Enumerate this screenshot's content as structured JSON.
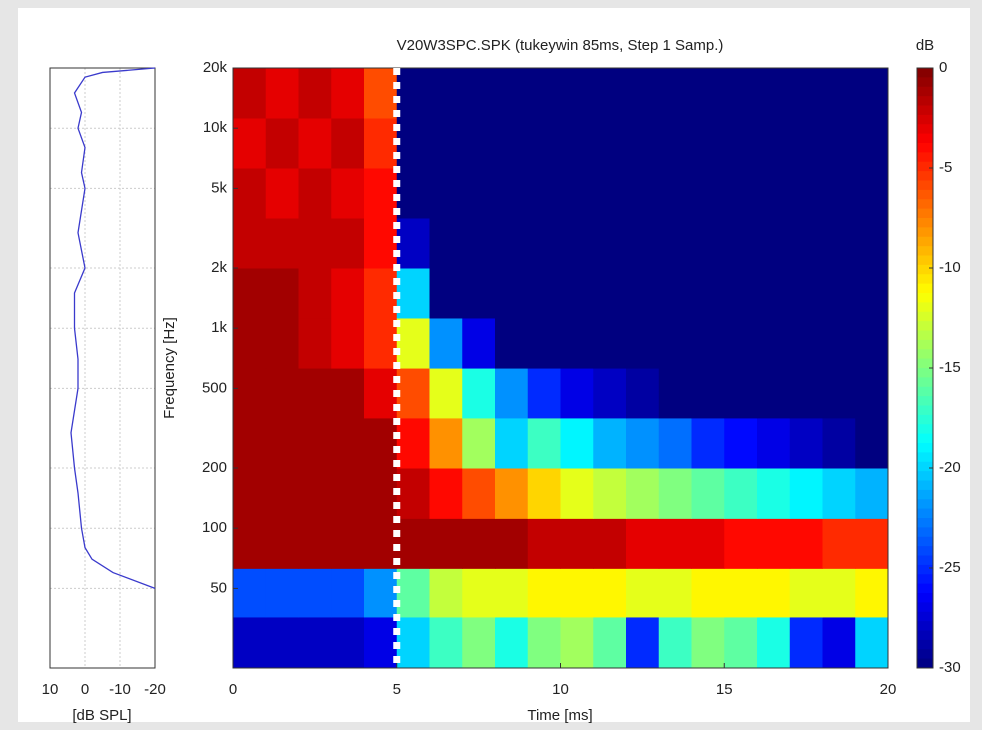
{
  "chart_data": [
    {
      "type": "line",
      "xlabel": "[dB SPL]",
      "y": [
        20000,
        19000,
        18000,
        15000,
        12000,
        10000,
        8000,
        6000,
        5000,
        3000,
        2000,
        1500,
        1000,
        700,
        500,
        300,
        200,
        150,
        100,
        80,
        70,
        60,
        50
      ],
      "values": [
        -20,
        -5,
        0,
        3,
        1,
        2,
        0,
        1,
        0,
        2,
        0,
        3,
        3,
        2,
        2,
        4,
        3,
        2,
        1,
        0,
        -2,
        -8,
        -20
      ],
      "color": "#3a3acc",
      "xlim": [
        10,
        -20
      ],
      "xticks": [
        10,
        0,
        -10,
        -20
      ],
      "ylim": [
        20,
        20000
      ],
      "log_y": true,
      "grid": true
    },
    {
      "type": "heatmap",
      "title": "V20W3SPC.SPK (tukeywin 85ms, Step 1 Samp.)",
      "xlabel": "Time [ms]",
      "ylabel": "Frequency [Hz]",
      "colorbar_label": "dB",
      "colormap": "jet",
      "clim": [
        -30,
        0
      ],
      "cticks": [
        0,
        -5,
        -10,
        -15,
        -20,
        -25,
        -30
      ],
      "xlim": [
        0,
        20
      ],
      "xticks": [
        0,
        5,
        10,
        15,
        20
      ],
      "ylim": [
        20,
        20000
      ],
      "log_y": true,
      "yticks": [
        50,
        100,
        200,
        500,
        {
          "value": 1000,
          "label": "1k"
        },
        {
          "value": 2000,
          "label": "2k"
        },
        {
          "value": 5000,
          "label": "5k"
        },
        {
          "value": 10000,
          "label": "10k"
        },
        {
          "value": 20000,
          "label": "20k"
        }
      ],
      "xedges": [
        0,
        1,
        2,
        3,
        4,
        5,
        6,
        7,
        8,
        9,
        10,
        11,
        12,
        13,
        14,
        15,
        16,
        17,
        18,
        19,
        20
      ],
      "yedges": [
        20,
        36,
        63,
        112,
        200,
        356,
        632,
        1125,
        2000,
        3557,
        6325,
        11247,
        20000
      ],
      "z": [
        [
          -28,
          -28,
          -28,
          -28,
          -27,
          -20,
          -17,
          -15,
          -18,
          -15,
          -14,
          -16,
          -25,
          -17,
          -15,
          -16,
          -18,
          -25,
          -27,
          -20
        ],
        [
          -24,
          -24,
          -24,
          -24,
          -22,
          -16,
          -13,
          -12,
          -12,
          -11,
          -11,
          -11,
          -12,
          -12,
          -11,
          -11,
          -11,
          -12,
          -12,
          -11
        ],
        [
          -1,
          -1,
          -1,
          -1,
          -1,
          -1,
          -1,
          -1,
          -1,
          -2,
          -2,
          -2,
          -3,
          -3,
          -3,
          -4,
          -4,
          -4,
          -5,
          -5
        ],
        [
          -1,
          -1,
          -1,
          -1,
          -1,
          -2,
          -4,
          -6,
          -8,
          -10,
          -12,
          -13,
          -14,
          -15,
          -16,
          -17,
          -18,
          -19,
          -20,
          -21
        ],
        [
          -1,
          -1,
          -1,
          -1,
          -1,
          -4,
          -8,
          -14,
          -20,
          -17,
          -19,
          -21,
          -22,
          -23,
          -25,
          -26,
          -27,
          -28,
          -29,
          -30
        ],
        [
          -1,
          -1,
          -1,
          -1,
          -3,
          -6,
          -12,
          -18,
          -22,
          -25,
          -27,
          -28,
          -29,
          -30,
          -30,
          -30,
          -30,
          -30,
          -30,
          -30
        ],
        [
          -1,
          -1,
          -2,
          -3,
          -5,
          -12,
          -22,
          -27,
          -30,
          -30,
          -30,
          -30,
          -30,
          -30,
          -30,
          -30,
          -30,
          -30,
          -30,
          -30
        ],
        [
          -1,
          -1,
          -2,
          -3,
          -5,
          -20,
          -30,
          -30,
          -30,
          -30,
          -30,
          -30,
          -30,
          -30,
          -30,
          -30,
          -30,
          -30,
          -30,
          -30
        ],
        [
          -2,
          -2,
          -2,
          -2,
          -4,
          -28,
          -30,
          -30,
          -30,
          -30,
          -30,
          -30,
          -30,
          -30,
          -30,
          -30,
          -30,
          -30,
          -30,
          -30
        ],
        [
          -2,
          -3,
          -2,
          -3,
          -4,
          -30,
          -30,
          -30,
          -30,
          -30,
          -30,
          -30,
          -30,
          -30,
          -30,
          -30,
          -30,
          -30,
          -30,
          -30
        ],
        [
          -3,
          -2,
          -3,
          -2,
          -5,
          -30,
          -30,
          -30,
          -30,
          -30,
          -30,
          -30,
          -30,
          -30,
          -30,
          -30,
          -30,
          -30,
          -30,
          -30
        ],
        [
          -2,
          -3,
          -2,
          -3,
          -6,
          -30,
          -30,
          -30,
          -30,
          -30,
          -30,
          -30,
          -30,
          -30,
          -30,
          -30,
          -30,
          -30,
          -30,
          -30
        ]
      ],
      "marker_time": 5
    }
  ]
}
